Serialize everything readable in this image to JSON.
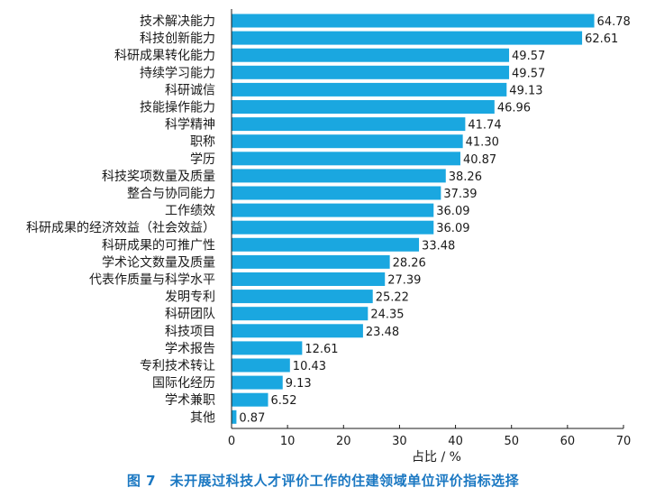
{
  "chart_data": {
    "type": "bar",
    "orientation": "horizontal",
    "categories": [
      "技术解决能力",
      "科技创新能力",
      "科研成果转化能力",
      "持续学习能力",
      "科研诚信",
      "技能操作能力",
      "科学精神",
      "职称",
      "学历",
      "科技奖项数量及质量",
      "整合与协同能力",
      "工作绩效",
      "科研成果的经济效益（社会效益）",
      "科研成果的可推广性",
      "学术论文数量及质量",
      "代表作质量与科学水平",
      "发明专利",
      "科研团队",
      "科技项目",
      "学术报告",
      "专利技术转让",
      "国际化经历",
      "学术兼职",
      "其他"
    ],
    "values": [
      64.78,
      62.61,
      49.57,
      49.57,
      49.13,
      46.96,
      41.74,
      41.3,
      40.87,
      38.26,
      37.39,
      36.09,
      36.09,
      33.48,
      28.26,
      27.39,
      25.22,
      24.35,
      23.48,
      12.61,
      10.43,
      9.13,
      6.52,
      0.87
    ],
    "value_labels": [
      "64.78",
      "62.61",
      "49.57",
      "49.57",
      "49.13",
      "46.96",
      "41.74",
      "41.30",
      "40.87",
      "38.26",
      "37.39",
      "36.09",
      "36.09",
      "33.48",
      "28.26",
      "27.39",
      "25.22",
      "24.35",
      "23.48",
      "12.61",
      "10.43",
      "9.13",
      "6.52",
      "0.87"
    ],
    "xlabel": "占比 / %",
    "xlim": [
      0,
      70
    ],
    "xticks": [
      "0",
      "10",
      "20",
      "30",
      "40",
      "50",
      "60",
      "70"
    ],
    "bar_color": "#1aa7e0",
    "grid": false,
    "legend": "none"
  },
  "caption": "图 7　未开展过科技人才评价工作的住建领域单位评价指标选择",
  "colors": {
    "caption": "#1b78c2",
    "axis": "#1a1a1a"
  }
}
